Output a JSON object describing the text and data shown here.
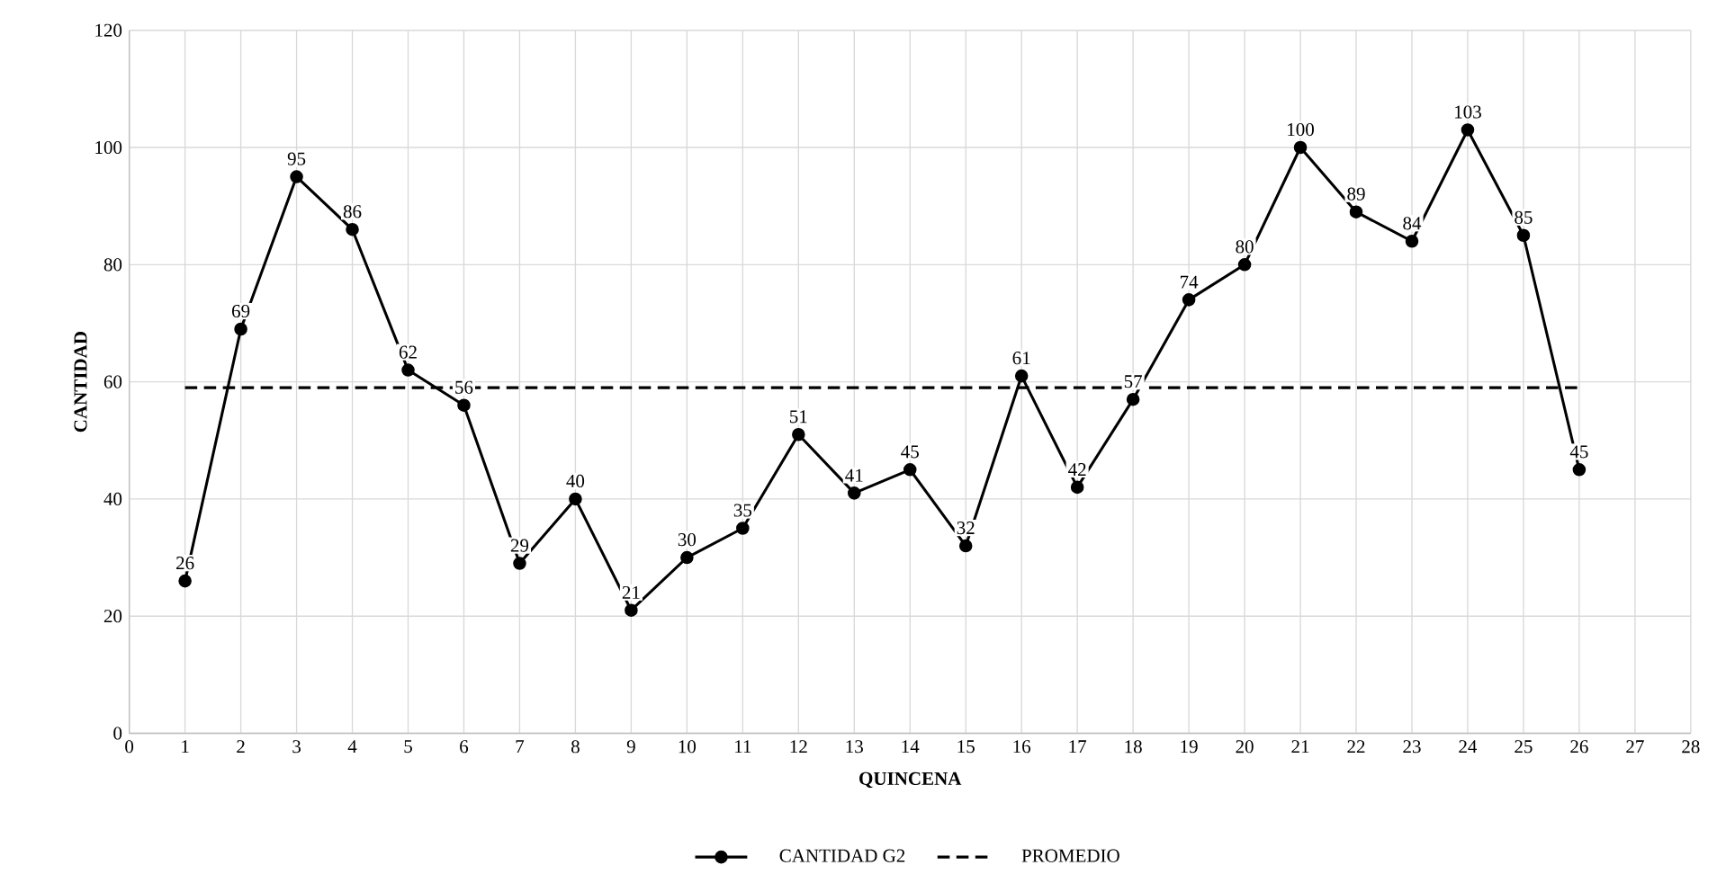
{
  "chart_data": {
    "type": "line",
    "xlabel": "QUINCENA",
    "ylabel": "CANTIDAD",
    "xlim": [
      0,
      28
    ],
    "xticks": [
      0,
      1,
      2,
      3,
      4,
      5,
      6,
      7,
      8,
      9,
      10,
      11,
      12,
      13,
      14,
      15,
      16,
      17,
      18,
      19,
      20,
      21,
      22,
      23,
      24,
      25,
      26,
      27,
      28
    ],
    "ylim": [
      0,
      120
    ],
    "yticks": [
      0,
      20,
      40,
      60,
      80,
      100,
      120
    ],
    "grid": true,
    "legend": "bottom",
    "series": [
      {
        "name": "CANTIDAD G2",
        "color": "#000000",
        "marker": "circle",
        "line_style": "solid",
        "x": [
          1,
          2,
          3,
          4,
          5,
          6,
          7,
          8,
          9,
          10,
          11,
          12,
          13,
          14,
          15,
          16,
          17,
          18,
          19,
          20,
          21,
          22,
          23,
          24,
          25,
          26
        ],
        "values": [
          26,
          69,
          95,
          86,
          62,
          56,
          29,
          40,
          21,
          30,
          35,
          51,
          41,
          45,
          32,
          61,
          42,
          57,
          74,
          80,
          100,
          89,
          84,
          103,
          85,
          45
        ],
        "value_labels": [
          "26",
          "69",
          "95",
          "86",
          "62",
          "56",
          "29",
          "40",
          "21",
          "30",
          "35",
          "51",
          "41",
          "45",
          "32",
          "61",
          "42",
          "57",
          "74",
          "80",
          "100",
          "89",
          "84",
          "103",
          "85",
          "45"
        ]
      },
      {
        "name": "PROMEDIO",
        "color": "#000000",
        "marker": "none",
        "line_style": "dashed",
        "x": [
          1,
          26
        ],
        "values": [
          59,
          59
        ]
      }
    ]
  }
}
